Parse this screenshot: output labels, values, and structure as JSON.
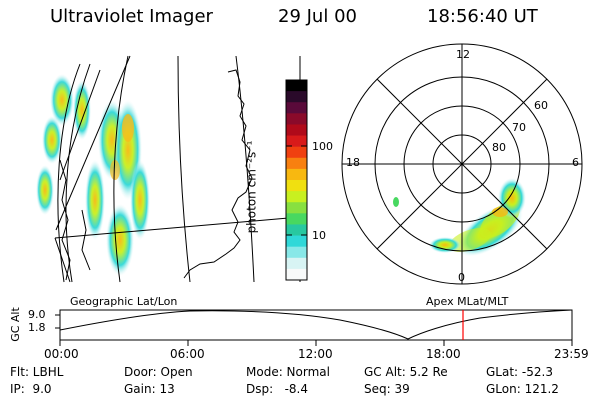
{
  "header": {
    "instrument": "Ultraviolet Imager",
    "date": "29 Jul 00",
    "time": "18:56:40 UT"
  },
  "colorbar": {
    "unit_label": "photon cm⁻²s⁻¹",
    "ticks": [
      "100",
      "10"
    ],
    "colors": [
      "#000000",
      "#2a0a2a",
      "#5a0a3a",
      "#8a0a2a",
      "#b00a1a",
      "#d81a1a",
      "#f04010",
      "#f88010",
      "#f8b810",
      "#f0e010",
      "#c8f020",
      "#88e040",
      "#48d860",
      "#28c8a0",
      "#30d8d8",
      "#88e8e8",
      "#d8f4f4",
      "#f8fafa"
    ]
  },
  "geo_map": {
    "label": "Geographic Lat/Lon"
  },
  "polar": {
    "label": "Apex MLat/MLT",
    "mlt_labels": [
      "12",
      "18",
      "6",
      "0"
    ],
    "lat_labels": [
      "60",
      "70",
      "80"
    ]
  },
  "timeline": {
    "axis_title": "GC Alt",
    "y_labels": [
      "9.0",
      "1.8"
    ],
    "x_labels": [
      "00:00",
      "06:00",
      "12:00",
      "18:00",
      "23:59"
    ],
    "marker_color": "#ff0000"
  },
  "status": {
    "filter": "Flt: LBHL",
    "ip": "IP:  9.0",
    "door": "Door: Open",
    "gain": "Gain: 13",
    "mode": "Mode: Normal",
    "dsp": "Dsp:   -8.4",
    "gc_alt": "GC Alt: 5.2 Re",
    "seq": "Seq: 39",
    "glat": "GLat: -52.3",
    "glon": "GLon: 121.2"
  }
}
